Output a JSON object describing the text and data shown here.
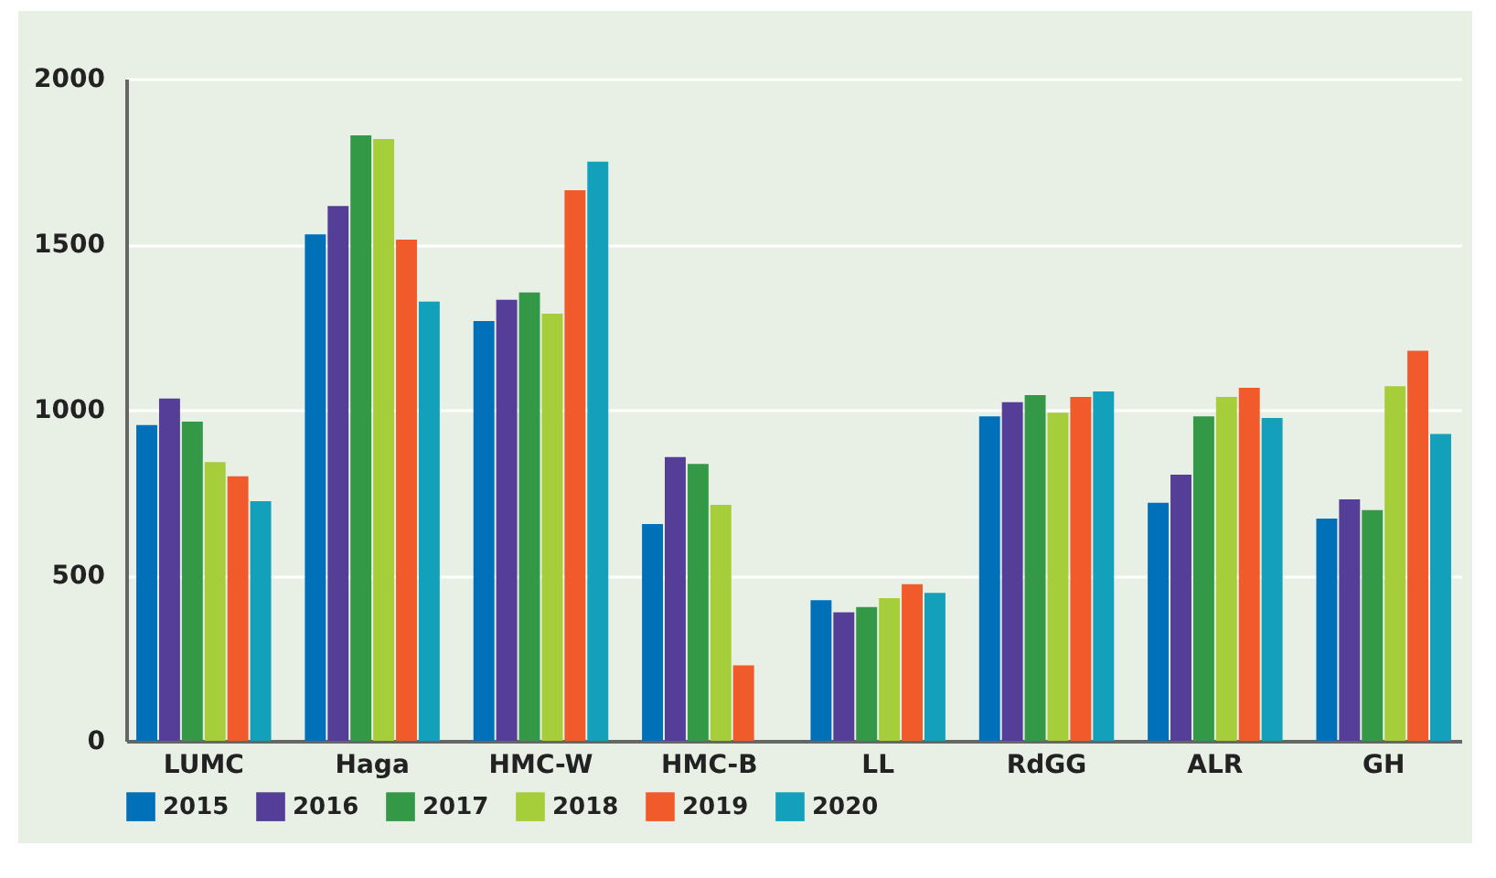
{
  "chart_data": {
    "type": "bar",
    "categories": [
      "LUMC",
      "Haga",
      "HMC-W",
      "HMC-B",
      "LL",
      "RdGG",
      "ALR",
      "GH"
    ],
    "series": [
      {
        "name": "2015",
        "color": "#0070b8",
        "values": [
          954,
          1530,
          1268,
          655,
          425,
          980,
          719,
          671
        ]
      },
      {
        "name": "2016",
        "color": "#553e98",
        "values": [
          1034,
          1615,
          1332,
          857,
          388,
          1023,
          804,
          729
        ]
      },
      {
        "name": "2017",
        "color": "#349946",
        "values": [
          964,
          1829,
          1354,
          836,
          404,
          1044,
          980,
          697
        ]
      },
      {
        "name": "2018",
        "color": "#a6cd3a",
        "values": [
          842,
          1818,
          1290,
          713,
          431,
          991,
          1039,
          1071
        ]
      },
      {
        "name": "2019",
        "color": "#f15a2b",
        "values": [
          799,
          1514,
          1663,
          228,
          473,
          1039,
          1066,
          1178
        ]
      },
      {
        "name": "2020",
        "color": "#13a0bb",
        "values": [
          724,
          1327,
          1749,
          null,
          447,
          1055,
          975,
          927
        ]
      }
    ],
    "ylim": [
      0,
      2000
    ],
    "yticks": [
      0,
      500,
      1000,
      1500,
      2000
    ],
    "grid": "y",
    "legend": "bottom left"
  }
}
